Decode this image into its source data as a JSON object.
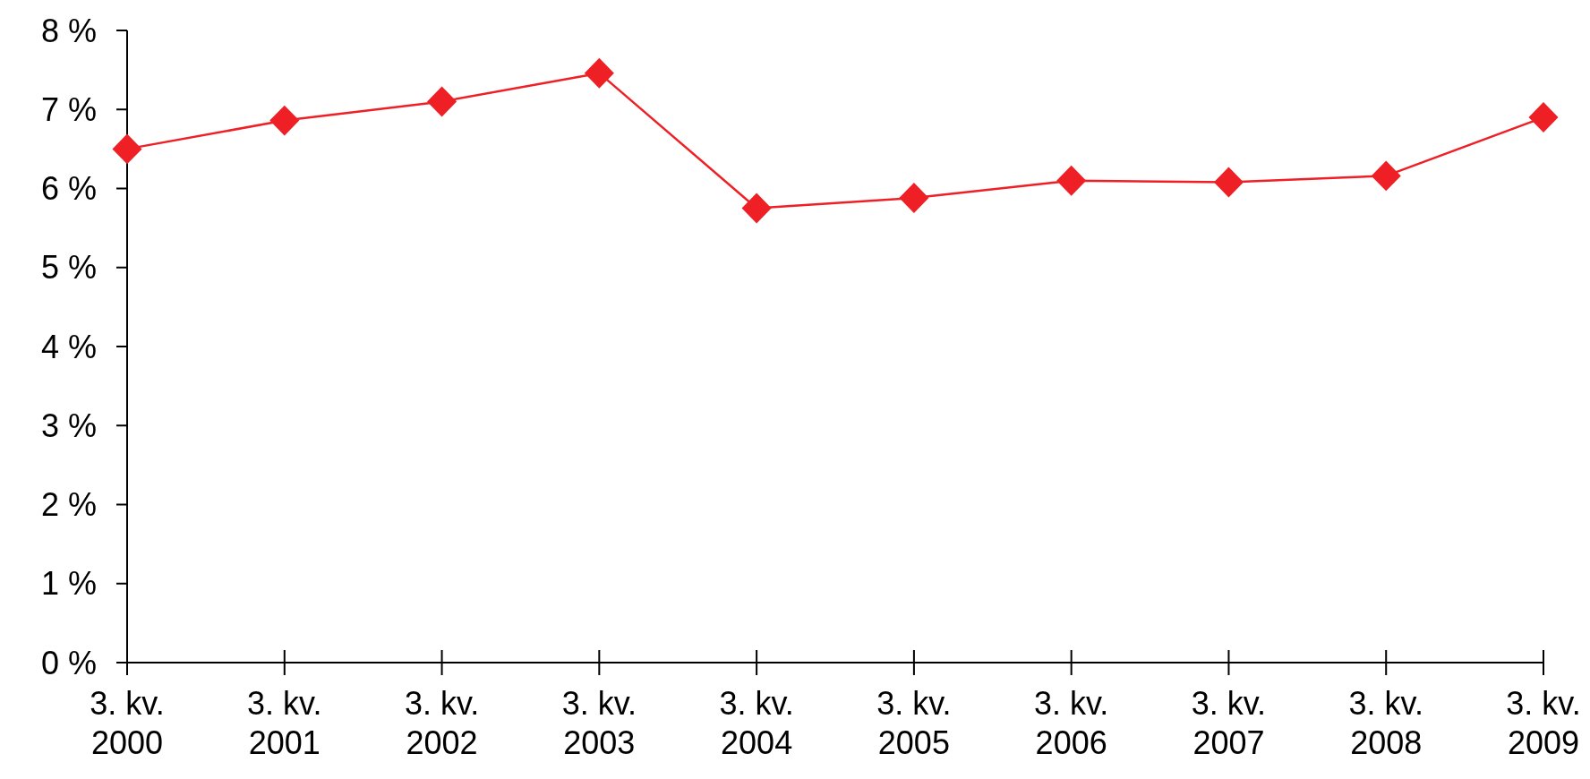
{
  "chart_data": {
    "type": "line",
    "categories": [
      "3. kv.\n2000",
      "3. kv.\n2001",
      "3. kv.\n2002",
      "3. kv.\n2003",
      "3. kv.\n2004",
      "3. kv.\n2005",
      "3. kv.\n2006",
      "3. kv.\n2007",
      "3. kv.\n2008",
      "3. kv.\n2009"
    ],
    "series": [
      {
        "color": "#ee2026",
        "values": [
          6.5,
          6.86,
          7.1,
          7.46,
          5.75,
          5.88,
          6.1,
          6.08,
          6.16,
          6.9
        ]
      }
    ],
    "ylim": [
      0,
      8
    ],
    "yticks": [
      {
        "value": 0,
        "label": "0 %"
      },
      {
        "value": 1,
        "label": "1 %"
      },
      {
        "value": 2,
        "label": "2 %"
      },
      {
        "value": 3,
        "label": "3 %"
      },
      {
        "value": 4,
        "label": "4 %"
      },
      {
        "value": 5,
        "label": "5 %"
      },
      {
        "value": 6,
        "label": "6 %"
      },
      {
        "value": 7,
        "label": "7 %"
      },
      {
        "value": 8,
        "label": "8 %"
      }
    ],
    "grid": false,
    "marker": "diamond",
    "line_style": "solid"
  }
}
